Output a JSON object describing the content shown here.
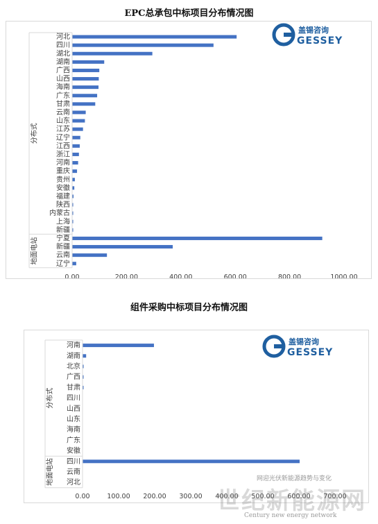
{
  "logo": {
    "cn_text": "盖锡咨询",
    "en_text": "GESSEY",
    "accent": "#1f5fa0"
  },
  "watermark": {
    "line1": "网迎光伏新能源趋势与变化",
    "big": "世纪新能源网",
    "en": "Century new energy network"
  },
  "colors": {
    "bar": "#4472c4",
    "axis": "#d9d9d9",
    "text": "#404040"
  },
  "chart_data": [
    {
      "type": "bar",
      "orientation": "horizontal",
      "title": "EPC总承包中标项目分布情况图",
      "groups": [
        {
          "name": "分布式",
          "categories": [
            "河北",
            "四川",
            "湖北",
            "湖南",
            "广西",
            "山西",
            "海南",
            "广东",
            "甘肃",
            "云南",
            "山东",
            "江苏",
            "辽宁",
            "江西",
            "浙江",
            "河南",
            "重庆",
            "贵州",
            "安徽",
            "福建",
            "陕西",
            "内蒙古",
            "上海",
            "新疆"
          ],
          "values": [
            605,
            520,
            295,
            118,
            100,
            98,
            97,
            92,
            85,
            50,
            47,
            40,
            30,
            28,
            25,
            22,
            18,
            10,
            8,
            5,
            3,
            2,
            1,
            1
          ]
        },
        {
          "name": "地面电站",
          "categories": [
            "宁夏",
            "新疆",
            "云南",
            "辽宁"
          ],
          "values": [
            920,
            370,
            128,
            15
          ]
        }
      ],
      "xlim": [
        0,
        1000
      ],
      "xticks": [
        "0.00",
        "200.00",
        "400.00",
        "600.00",
        "800.00",
        "1000.00"
      ],
      "grid": false,
      "legend": "none"
    },
    {
      "type": "bar",
      "orientation": "horizontal",
      "title": "组件采购中标项目分布情况图",
      "groups": [
        {
          "name": "分布式",
          "categories": [
            "河南",
            "湖南",
            "北京",
            "广西",
            "甘肃",
            "四川",
            "山西",
            "山东",
            "海南",
            "广东",
            "安徽"
          ],
          "values": [
            198,
            10,
            3,
            2,
            2,
            0,
            0,
            0,
            0,
            0,
            0
          ]
        },
        {
          "name": "地面电站",
          "categories": [
            "四川",
            "云南",
            "河北"
          ],
          "values": [
            602,
            0,
            0
          ]
        }
      ],
      "xlim": [
        0,
        700
      ],
      "xticks": [
        "0.00",
        "100.00",
        "200.00",
        "300.00",
        "400.00",
        "500.00",
        "600.00",
        "700.00"
      ],
      "grid": false,
      "legend": "none"
    }
  ]
}
